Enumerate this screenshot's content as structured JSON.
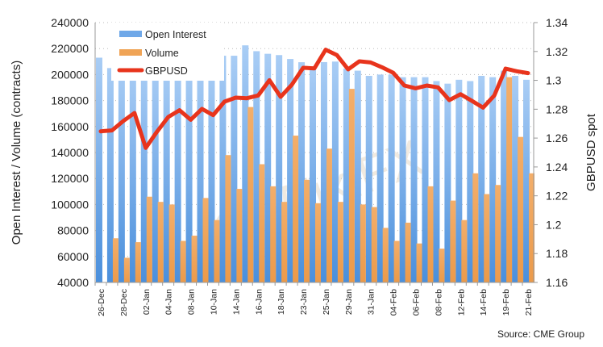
{
  "chart_data": {
    "type": "bar+line",
    "categories": [
      "26-Dec",
      "",
      "28-Dec",
      "",
      "02-Jan",
      "",
      "04-Jan",
      "",
      "08-Jan",
      "",
      "10-Jan",
      "",
      "14-Jan",
      "",
      "16-Jan",
      "",
      "18-Jan",
      "",
      "23-Jan",
      "",
      "25-Jan",
      "",
      "29-Jan",
      "",
      "31-Jan",
      "",
      "04-Feb",
      "",
      "06-Feb",
      "",
      "08-Feb",
      "",
      "12-Feb",
      "",
      "14-Feb",
      "",
      "19-Feb",
      "",
      "21-Feb"
    ],
    "ylabel": "Open Interest / Volume (contracts)",
    "y2label": "GBPUSD spot",
    "ylim": [
      40000,
      240000
    ],
    "y2lim": [
      1.16,
      1.34
    ],
    "yticks": [
      "40000",
      "60000",
      "80000",
      "100000",
      "120000",
      "140000",
      "160000",
      "180000",
      "200000",
      "220000",
      "240000"
    ],
    "y2ticks": [
      "1.16",
      "1.18",
      "1.2",
      "1.22",
      "1.24",
      "1.26",
      "1.28",
      "1.3",
      "1.32",
      "1.34"
    ],
    "grid": true,
    "legend_position": "top-left",
    "series": [
      {
        "name": "Open Interest",
        "type": "bar",
        "color": "#6fa8e8",
        "values": [
          213000,
          205000,
          205000,
          205000,
          205000,
          205000,
          205000,
          205000,
          205000,
          205000,
          205000,
          214500,
          214500,
          222500,
          218000,
          216000,
          215000,
          212000,
          209500,
          204600,
          209600,
          210000,
          204600,
          203000,
          199000,
          200000,
          200000,
          198000,
          198000,
          198000,
          195000,
          193000,
          196000,
          195000,
          199000,
          198000,
          203000,
          199000,
          196000
        ]
      },
      {
        "name": "Volume",
        "type": "bar",
        "color": "#f0a456",
        "values": [
          null,
          74000,
          59000,
          71000,
          106000,
          102000,
          100000,
          72000,
          76000,
          105000,
          88000,
          138000,
          112000,
          175000,
          131000,
          114000,
          102000,
          153000,
          119000,
          101000,
          143000,
          102000,
          189000,
          100000,
          98000,
          82000,
          72000,
          86000,
          70000,
          114000,
          66000,
          103000,
          88000,
          124000,
          108000,
          115000,
          198000,
          152000,
          124000
        ]
      },
      {
        "name": "GBPUSD",
        "type": "line",
        "axis": "right",
        "color": "#e8341c",
        "values": [
          1.2647,
          1.2653,
          1.2718,
          1.2774,
          1.2532,
          1.2644,
          1.2746,
          1.2793,
          1.2727,
          1.2802,
          1.2759,
          1.2852,
          1.288,
          1.2876,
          1.2895,
          1.3001,
          1.2886,
          1.297,
          1.3087,
          1.3083,
          1.3212,
          1.3175,
          1.3076,
          1.3132,
          1.3124,
          1.3091,
          1.3053,
          1.2964,
          1.2945,
          1.2964,
          1.2951,
          1.2863,
          1.2904,
          1.2858,
          1.2811,
          1.2895,
          1.3081,
          1.3063,
          1.305
        ]
      }
    ],
    "source": "Source: CME Group",
    "watermark": "WikiFX"
  }
}
